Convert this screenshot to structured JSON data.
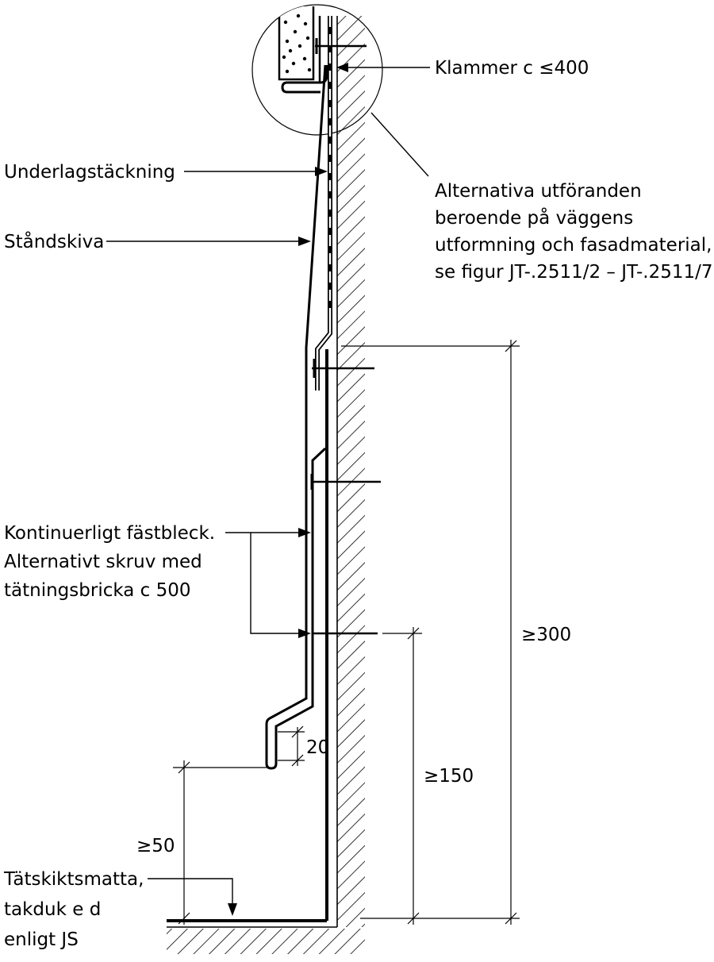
{
  "labels": {
    "klammer": "Klammer c ≤400",
    "alternativa": [
      "Alternativa utföranden",
      "beroende på väggens",
      "utformning och fasadmaterial,",
      "se figur JT-.2511/2 – JT-.2511/7"
    ],
    "underlag": "Underlagstäckning",
    "standskiva": "Ståndskiva",
    "fastbleck": [
      "Kontinuerligt fästbleck.",
      "Alternativt skruv med",
      "tätningsbricka c 500"
    ],
    "tatskikt": [
      "Tätskiktsmatta,",
      "takduk e d",
      "enligt JS"
    ]
  },
  "dimensions": {
    "min_300": "≥300",
    "min_150": "≥150",
    "min_50": "≥50",
    "drip_20": "20"
  }
}
